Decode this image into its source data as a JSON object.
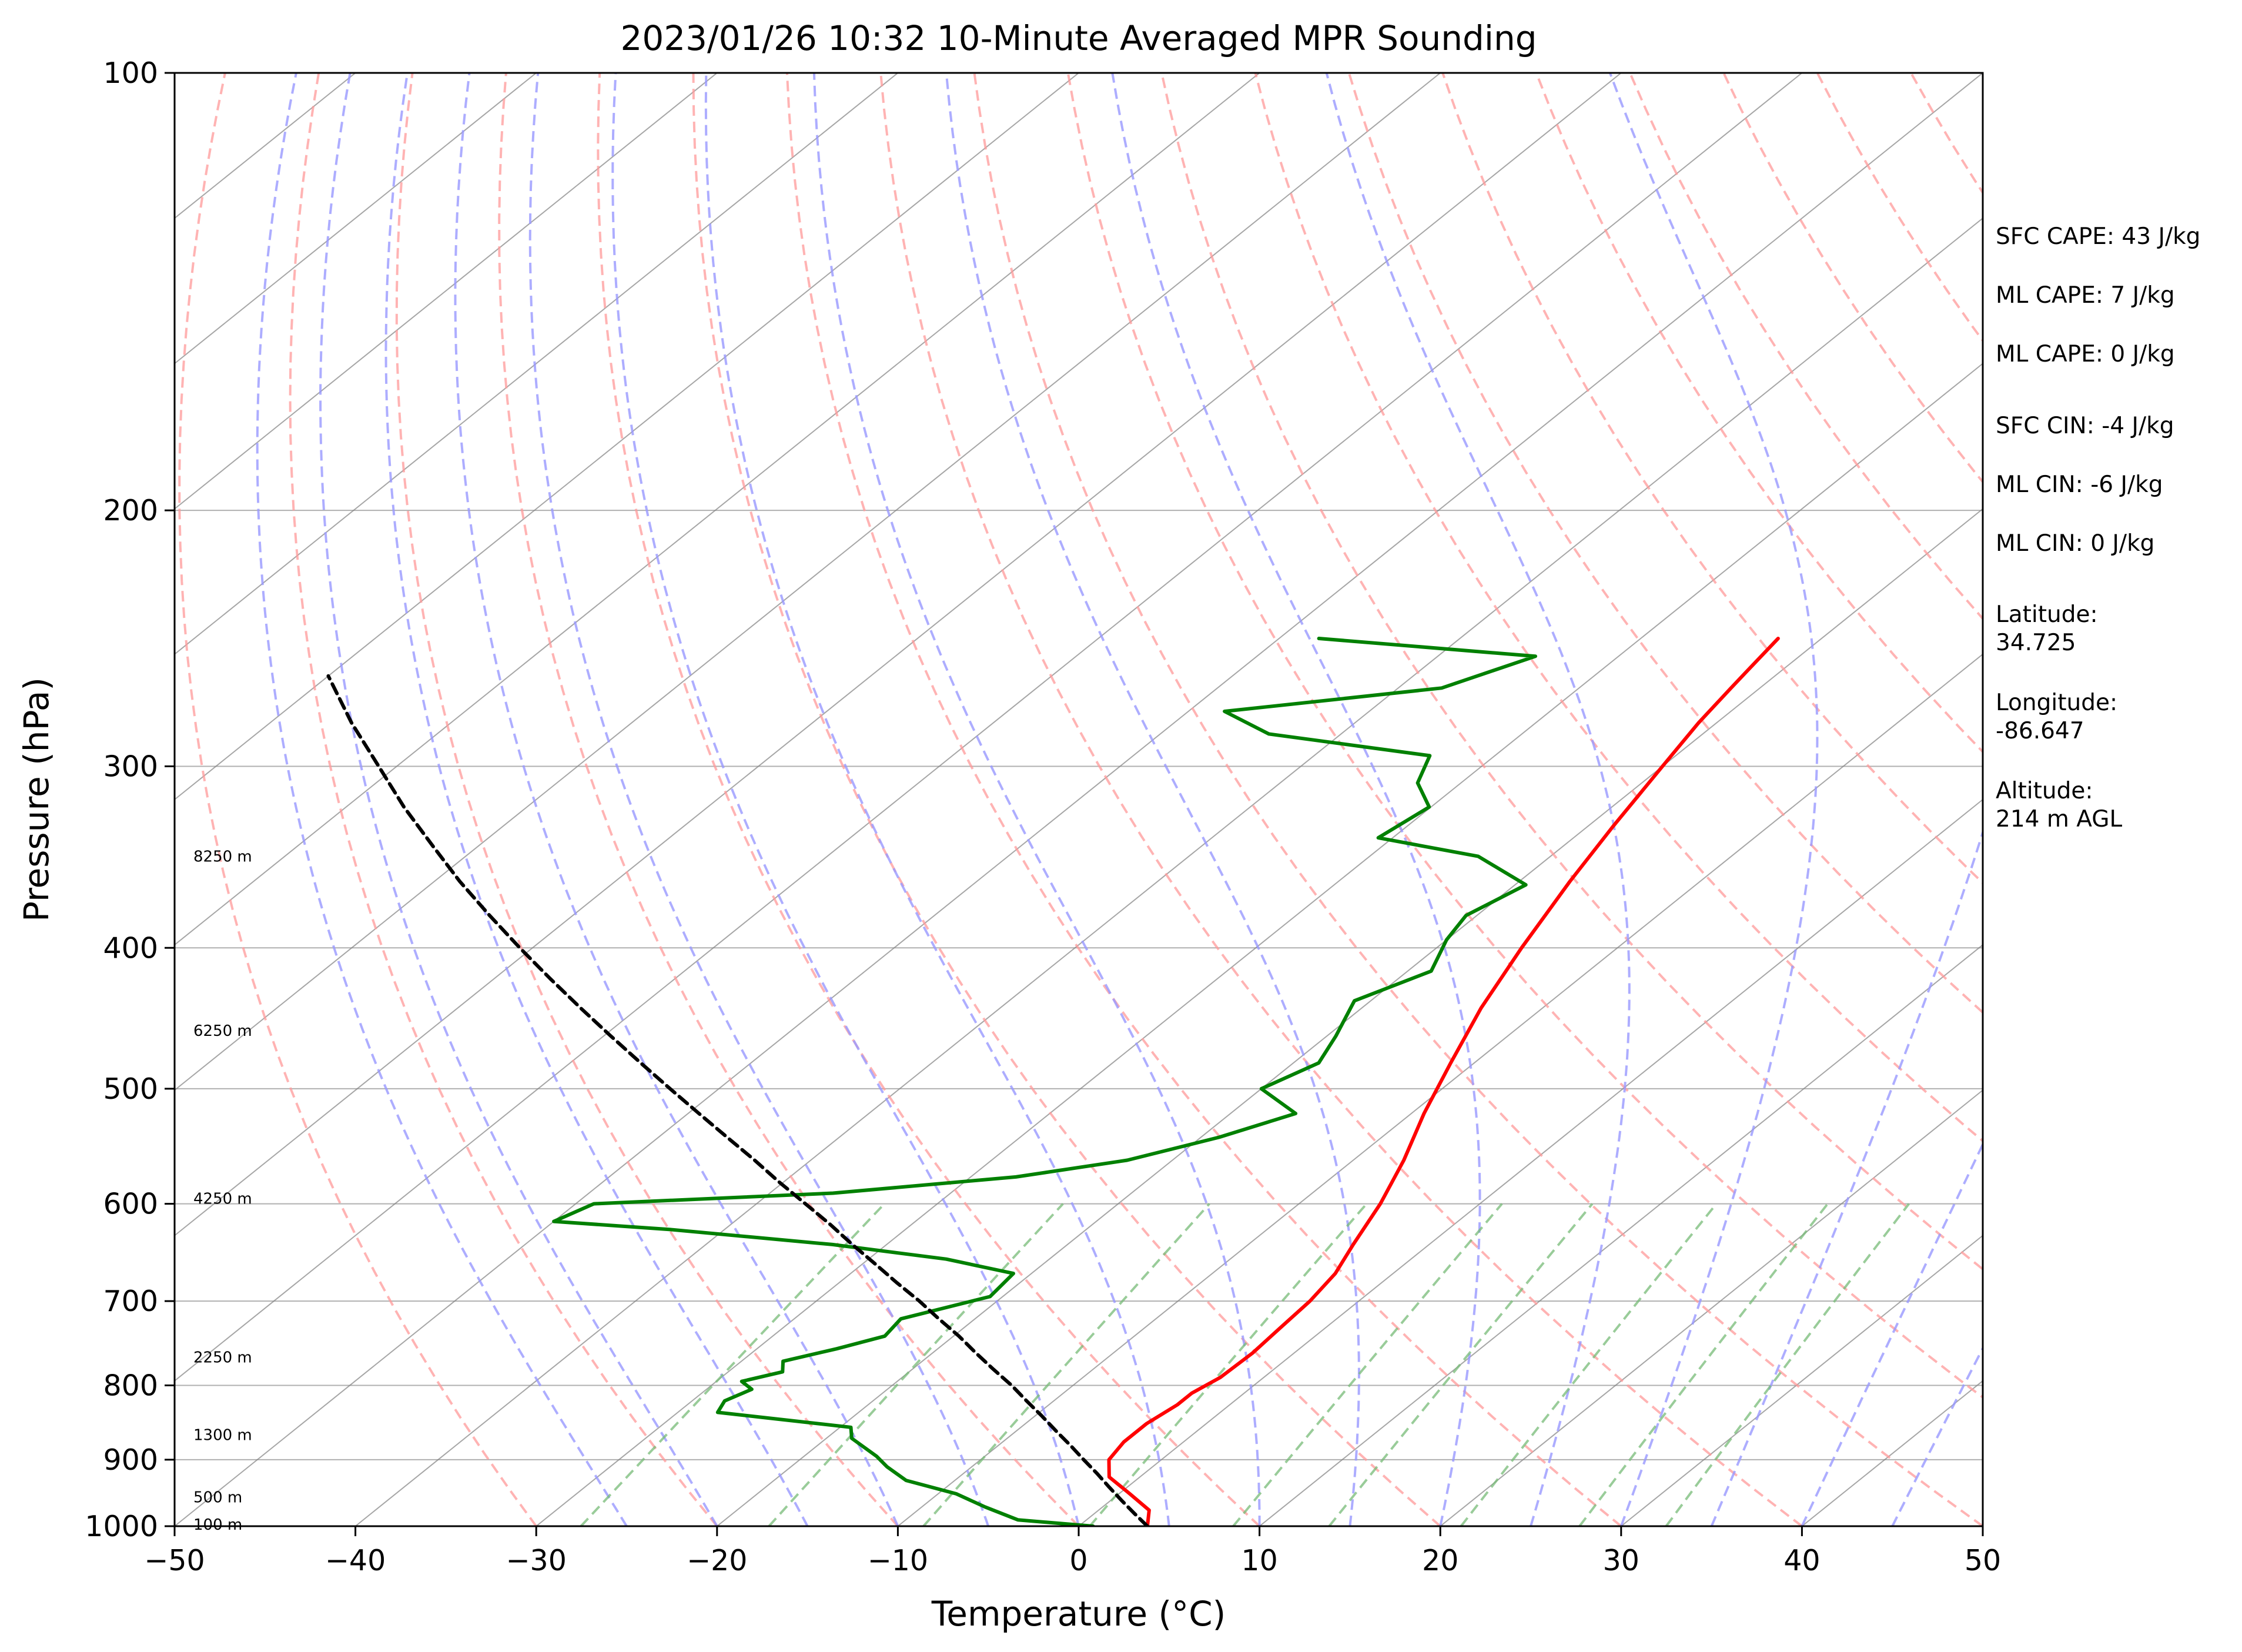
{
  "chart_data": {
    "type": "line",
    "subtype": "skew-t log-p",
    "title": "2023/01/26 10:32 10-Minute Averaged MPR Sounding",
    "xlabel": "Temperature (°C)",
    "ylabel": "Pressure (hPa)",
    "xlim": [
      -50,
      50
    ],
    "ylim": [
      1000,
      100
    ],
    "y_scale": "log",
    "x_ticks": [
      "−50",
      "−40",
      "−30",
      "−20",
      "−10",
      "0",
      "10",
      "20",
      "30",
      "40",
      "50"
    ],
    "y_ticks": [
      "100",
      "200",
      "300",
      "400",
      "500",
      "600",
      "700",
      "800",
      "900",
      "1000"
    ],
    "grid": true,
    "series": [
      {
        "key": "temperature",
        "color": "#ff0000",
        "style": "solid",
        "points": [
          [
            1000,
            3.8
          ],
          [
            975,
            2.8
          ],
          [
            950,
            0.6
          ],
          [
            925,
            -1.7
          ],
          [
            900,
            -2.9
          ],
          [
            875,
            -3.3
          ],
          [
            850,
            -3.3
          ],
          [
            825,
            -2.9
          ],
          [
            810,
            -2.9
          ],
          [
            790,
            -2.4
          ],
          [
            760,
            -2.3
          ],
          [
            730,
            -2.5
          ],
          [
            700,
            -2.7
          ],
          [
            670,
            -3.2
          ],
          [
            640,
            -4.2
          ],
          [
            600,
            -5.5
          ],
          [
            560,
            -7.2
          ],
          [
            520,
            -9.3
          ],
          [
            480,
            -11.3
          ],
          [
            440,
            -13.4
          ],
          [
            400,
            -15.3
          ],
          [
            360,
            -17.2
          ],
          [
            330,
            -18.6
          ],
          [
            300,
            -20.0
          ],
          [
            280,
            -21.0
          ],
          [
            265,
            -21.6
          ],
          [
            255,
            -22.0
          ],
          [
            245,
            -22.4
          ]
        ]
      },
      {
        "key": "dewpoint",
        "color": "#008000",
        "style": "solid",
        "points": [
          [
            1000,
            0.8
          ],
          [
            990,
            -3.8
          ],
          [
            970,
            -6.5
          ],
          [
            950,
            -9.0
          ],
          [
            930,
            -12.7
          ],
          [
            910,
            -14.7
          ],
          [
            895,
            -16.0
          ],
          [
            870,
            -18.6
          ],
          [
            855,
            -19.4
          ],
          [
            835,
            -27.8
          ],
          [
            820,
            -28.2
          ],
          [
            805,
            -27.5
          ],
          [
            795,
            -28.6
          ],
          [
            783,
            -27.0
          ],
          [
            770,
            -27.7
          ],
          [
            755,
            -25.6
          ],
          [
            740,
            -23.8
          ],
          [
            720,
            -24.1
          ],
          [
            695,
            -20.7
          ],
          [
            670,
            -21.0
          ],
          [
            655,
            -25.7
          ],
          [
            640,
            -33.0
          ],
          [
            625,
            -43.0
          ],
          [
            617,
            -50.0
          ],
          [
            600,
            -49.0
          ],
          [
            590,
            -36.5
          ],
          [
            575,
            -27.5
          ],
          [
            560,
            -22.5
          ],
          [
            540,
            -19.0
          ],
          [
            520,
            -16.4
          ],
          [
            500,
            -20.0
          ],
          [
            480,
            -18.6
          ],
          [
            460,
            -19.5
          ],
          [
            435,
            -20.9
          ],
          [
            415,
            -18.7
          ],
          [
            395,
            -20.0
          ],
          [
            380,
            -20.6
          ],
          [
            362,
            -19.4
          ],
          [
            346,
            -24.0
          ],
          [
            336,
            -30.8
          ],
          [
            320,
            -30.1
          ],
          [
            308,
            -32.4
          ],
          [
            295,
            -33.6
          ],
          [
            285,
            -44.0
          ],
          [
            275,
            -48.0
          ],
          [
            265,
            -37.6
          ],
          [
            252,
            -34.6
          ],
          [
            245,
            -47.8
          ]
        ]
      },
      {
        "key": "parcel",
        "color": "#000000",
        "style": "dashed",
        "points": [
          [
            1000,
            3.8
          ],
          [
            980,
            2.2
          ],
          [
            960,
            0.6
          ],
          [
            940,
            -1.0
          ],
          [
            920,
            -2.6
          ],
          [
            900,
            -4.3
          ],
          [
            880,
            -6.0
          ],
          [
            860,
            -7.8
          ],
          [
            840,
            -9.6
          ],
          [
            820,
            -11.5
          ],
          [
            800,
            -13.4
          ],
          [
            780,
            -15.5
          ],
          [
            760,
            -17.6
          ],
          [
            740,
            -19.7
          ],
          [
            720,
            -22.0
          ],
          [
            700,
            -24.3
          ],
          [
            680,
            -26.8
          ],
          [
            660,
            -29.3
          ],
          [
            640,
            -31.9
          ],
          [
            620,
            -34.5
          ],
          [
            600,
            -37.3
          ],
          [
            580,
            -40.2
          ],
          [
            560,
            -43.1
          ],
          [
            540,
            -46.2
          ],
          [
            520,
            -49.4
          ],
          [
            500,
            -52.7
          ],
          [
            480,
            -56.1
          ],
          [
            460,
            -59.6
          ],
          [
            440,
            -63.2
          ],
          [
            420,
            -66.9
          ],
          [
            400,
            -70.7
          ],
          [
            380,
            -74.6
          ],
          [
            360,
            -78.6
          ],
          [
            340,
            -82.6
          ],
          [
            320,
            -86.8
          ],
          [
            300,
            -91.0
          ],
          [
            280,
            -95.5
          ],
          [
            260,
            -100.0
          ]
        ]
      }
    ],
    "height_labels": [
      "8250 m",
      "6250 m",
      "4250 m",
      "2250 m",
      "1300 m",
      "500 m",
      "100 m"
    ],
    "height_label_pressures": [
      346,
      456,
      595,
      765,
      865,
      955,
      997
    ],
    "reference_lines": {
      "isotherm_color": "#808080",
      "dry_adiabat_color": "#ff9999",
      "moist_adiabat_color": "#9999ff",
      "mixing_ratio_color": "#77bb77",
      "mixing_ratio_values": [
        0.4,
        1,
        2,
        4,
        7,
        10,
        16,
        24,
        32
      ]
    }
  },
  "side_panel": {
    "sfc_cape": "SFC CAPE: 43 J/kg",
    "ml_cape_1": "ML CAPE: 7 J/kg",
    "ml_cape_2": "ML CAPE: 0 J/kg",
    "sfc_cin": "SFC CIN: -4 J/kg",
    "ml_cin_1": "ML CIN: -6 J/kg",
    "ml_cin_2": "ML CIN: 0 J/kg",
    "latitude_label": "Latitude:",
    "latitude_value": "34.725",
    "longitude_label": "Longitude:",
    "longitude_value": "-86.647",
    "altitude_label": "Altitude:",
    "altitude_value": "214 m AGL"
  }
}
